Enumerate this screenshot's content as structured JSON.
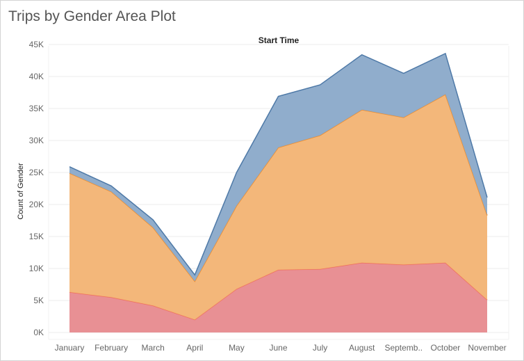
{
  "title": "Trips by Gender Area Plot",
  "chart_data": {
    "type": "area",
    "stacked": true,
    "title": "Trips by Gender Area Plot",
    "column_header": "Start Time",
    "xlabel": "",
    "ylabel": "Count of Gender",
    "categories": [
      "January",
      "February",
      "March",
      "April",
      "May",
      "June",
      "July",
      "August",
      "Septemb..",
      "October",
      "November"
    ],
    "y_ticks": [
      "0K",
      "5K",
      "10K",
      "15K",
      "20K",
      "25K",
      "30K",
      "35K",
      "40K",
      "45K"
    ],
    "ylim": [
      0,
      46000
    ],
    "grid": true,
    "series": [
      {
        "color": "#e78a8e",
        "values": [
          6300,
          5500,
          4200,
          2000,
          6800,
          9800,
          9900,
          10900,
          10600,
          10900,
          5100
        ]
      },
      {
        "color": "#f2b373",
        "values": [
          18600,
          16500,
          12200,
          6000,
          13000,
          19100,
          20900,
          23900,
          23000,
          26300,
          13200
        ]
      },
      {
        "color": "#8aa9c9",
        "values": [
          1000,
          900,
          1200,
          1000,
          5200,
          8000,
          7900,
          8600,
          6900,
          6400,
          2800
        ]
      }
    ]
  }
}
